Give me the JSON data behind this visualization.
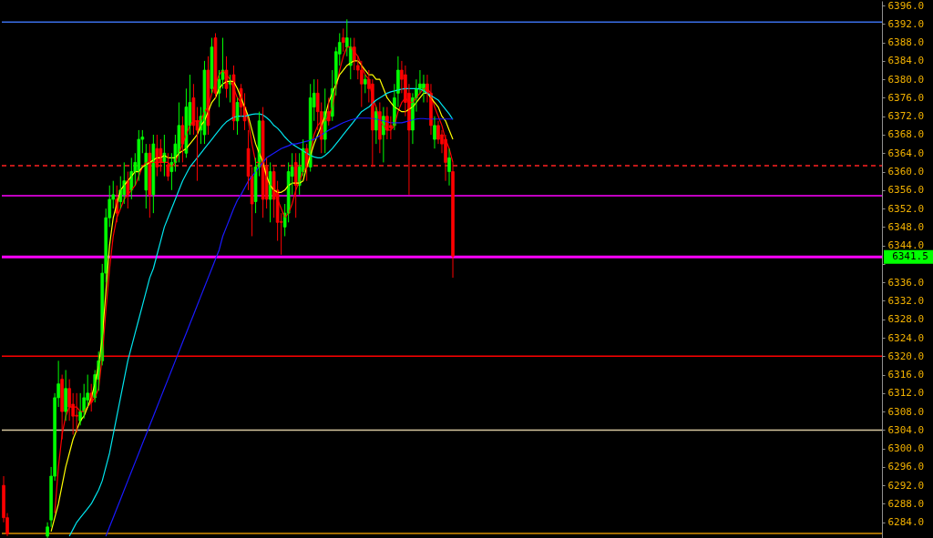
{
  "chart_data": {
    "type": "candlestick",
    "categories": [
      null,
      null,
      null,
      null,
      null,
      null,
      null,
      null,
      null,
      null,
      null,
      null,
      null,
      null,
      null,
      null,
      null,
      null,
      null,
      null,
      null,
      null,
      null,
      null,
      null,
      null,
      null,
      null,
      null,
      null,
      null,
      null,
      null,
      null,
      null,
      null,
      null,
      null,
      null,
      null,
      null,
      null,
      null,
      null,
      null,
      null,
      null,
      null,
      null,
      null,
      null,
      null,
      null,
      null,
      null,
      null,
      null,
      null,
      null,
      null,
      null,
      null,
      null,
      null,
      null,
      null,
      null,
      null,
      null,
      null,
      null,
      null,
      null,
      null,
      null,
      null,
      null,
      null,
      null,
      null,
      null,
      null,
      null,
      null,
      null,
      null,
      null,
      null,
      null,
      null,
      null,
      null,
      null,
      null,
      null,
      null,
      null,
      null,
      null,
      null,
      null,
      null,
      null,
      null,
      null,
      null,
      null,
      null,
      null,
      null,
      null,
      null,
      null,
      null,
      null,
      null,
      null,
      null,
      null,
      null,
      null,
      null,
      null,
      null,
      null,
      null,
      null,
      null,
      null,
      null,
      null,
      null,
      null,
      null,
      null,
      null,
      null,
      null,
      null,
      null,
      null,
      null,
      null,
      null,
      null,
      null,
      null,
      null,
      null,
      null,
      null,
      null,
      null,
      null,
      null,
      null,
      null,
      null,
      null,
      null,
      null,
      null,
      null,
      null,
      null,
      null,
      null,
      null,
      null,
      null,
      null,
      null,
      null,
      null,
      null,
      null,
      null,
      null,
      null,
      null,
      null,
      null,
      null,
      null,
      null,
      null,
      null,
      null,
      null,
      null,
      null,
      null,
      null,
      null,
      null,
      null,
      null,
      null,
      null,
      null,
      null,
      null,
      null,
      null,
      null,
      null,
      null,
      null,
      null,
      null,
      null,
      null,
      null,
      null,
      null,
      null,
      null,
      null,
      null,
      null,
      null,
      null,
      null,
      null,
      null,
      null,
      null,
      null,
      null,
      null,
      null,
      null,
      null,
      null,
      null,
      null,
      null,
      null,
      null,
      null,
      null
    ],
    "colors": [
      "#ff0000",
      "#ff0000",
      null,
      null,
      null,
      null,
      null,
      null,
      null,
      null,
      null,
      null,
      "#00ff00",
      "#00ff00",
      "#00ff00",
      "#00ff00",
      "#ff0000",
      "#00ff00",
      "#ff0000",
      "#ff0000",
      "#ff0000",
      "#00ff00",
      "#00ff00",
      "#00ff00",
      "#ff0000",
      "#00ff00",
      "#00ff00",
      "#00ff00",
      "#00ff00",
      "#00ff00",
      "#00ff00",
      "#ff0000",
      "#00ff00",
      "#00ff00",
      "#ff0000",
      "#00ff00",
      "#00ff00",
      "#00ff00",
      "#00ff00",
      "#00ff00",
      "#ff0000",
      "#00ff00",
      "#ff0000",
      "#ff0000",
      "#00ff00",
      "#ff0000",
      "#00ff00",
      "#00ff00",
      "#00ff00",
      "#ff0000",
      "#00ff00",
      "#00ff00",
      "#ff0000",
      "#ff0000",
      "#00ff00",
      "#00ff00",
      "#ff0000",
      "#00ff00",
      "#ff0000",
      "#00ff00",
      "#00ff00",
      "#ff0000",
      "#00ff00",
      "#ff0000",
      "#00ff00",
      "#ff0000",
      "#ff0000",
      "#ff0000",
      "#ff0000",
      "#00ff00",
      "#00ff00",
      "#ff0000",
      "#ff0000",
      "#00ff00",
      "#ff0000",
      "#ff0000",
      "#ff0000",
      "#00ff00",
      "#00ff00",
      "#00ff00",
      "#ff0000",
      "#00ff00",
      "#00ff00",
      "#ff0000",
      "#00ff00",
      "#00ff00",
      "#ff0000",
      "#ff0000",
      "#00ff00",
      "#ff0000",
      "#00ff00",
      "#00ff00",
      "#00ff00",
      "#ff0000",
      "#00ff00",
      "#00ff00",
      "#ff0000",
      "#ff0000",
      "#ff0000",
      "#00ff00",
      "#ff0000",
      "#ff0000",
      "#00ff00",
      "#ff0000",
      "#00ff00",
      "#ff0000",
      "#ff0000",
      "#00ff00",
      "#00ff00",
      "#ff0000",
      "#ff0000",
      "#ff0000",
      "#00ff00",
      "#00ff00",
      "#00ff00",
      "#00ff00",
      "#ff0000",
      "#ff0000",
      "#00ff00",
      "#ff0000",
      "#ff0000",
      "#ff0000",
      "#00ff00",
      "#ff0000",
      null,
      null,
      null,
      null,
      null,
      null,
      null,
      null,
      null,
      null,
      null,
      null,
      null,
      null,
      null,
      null,
      null,
      null,
      null,
      null,
      null,
      null,
      null,
      null,
      null,
      null,
      null,
      null,
      null,
      null,
      null,
      null,
      null,
      null,
      null,
      null,
      null,
      null,
      null,
      null,
      null,
      null,
      null,
      null,
      null,
      null,
      null,
      null,
      null,
      null,
      null,
      null,
      null,
      null,
      null,
      null,
      null,
      null,
      null,
      null,
      null,
      null,
      null,
      null,
      null,
      null,
      null,
      null,
      null,
      null,
      null,
      null,
      null,
      null,
      null,
      null,
      null,
      null,
      null,
      null,
      null,
      null,
      null,
      null,
      null,
      null,
      null,
      null,
      null,
      null,
      null,
      null,
      null,
      null,
      null,
      null,
      null,
      null,
      null,
      null,
      null,
      null,
      null,
      null,
      null,
      null,
      null,
      null,
      null,
      null,
      null,
      null,
      null,
      null,
      null,
      null,
      null
    ],
    "ohlc": [
      [
        6292,
        6294,
        6284,
        6285
      ],
      [
        6285,
        6286,
        6281,
        6281.5
      ],
      null,
      null,
      null,
      null,
      null,
      null,
      null,
      null,
      null,
      null,
      [
        6281,
        6284,
        6280.6,
        6283
      ],
      [
        6284.5,
        6296,
        6283,
        6294
      ],
      [
        6294,
        6312,
        6293,
        6311
      ],
      [
        6311,
        6319,
        6309,
        6314
      ],
      [
        6315,
        6316,
        6302,
        6308
      ],
      [
        6308,
        6317,
        6306,
        6313
      ],
      [
        6313,
        6315,
        6306,
        6309
      ],
      [
        6309.6,
        6312,
        6303,
        6307
      ],
      [
        6307.2,
        6312,
        6303.5,
        6307
      ],
      [
        6306,
        6312,
        6305,
        6308
      ],
      [
        6308,
        6314,
        6306.5,
        6311
      ],
      [
        6310.5,
        6316,
        6309,
        6312
      ],
      [
        6312,
        6314,
        6308,
        6310
      ],
      [
        6311,
        6317,
        6310,
        6316
      ],
      [
        6315,
        6321,
        6312.5,
        6319
      ],
      [
        6319,
        6340,
        6318,
        6338
      ],
      [
        6338,
        6352,
        6336,
        6350
      ],
      [
        6350,
        6357,
        6348,
        6354
      ],
      [
        6354,
        6358,
        6352,
        6355
      ],
      [
        6354,
        6357,
        6349,
        6351
      ],
      [
        6353.5,
        6359,
        6352,
        6356
      ],
      [
        6355,
        6362,
        6353,
        6358
      ],
      [
        6358,
        6360,
        6352,
        6355
      ],
      [
        6356,
        6363,
        6354,
        6360
      ],
      [
        6360,
        6364,
        6357,
        6362
      ],
      [
        6360,
        6369,
        6358,
        6367
      ],
      [
        6367,
        6369,
        6364,
        6367.5
      ],
      [
        6356,
        6366,
        6352,
        6364
      ],
      [
        6364,
        6366,
        6350,
        6355
      ],
      [
        6355,
        6368,
        6351,
        6366
      ],
      [
        6365,
        6368,
        6359,
        6361
      ],
      [
        6365,
        6367,
        6360,
        6362
      ],
      [
        6362,
        6368,
        6359,
        6364
      ],
      [
        6361.5,
        6364,
        6358,
        6359
      ],
      [
        6360,
        6364,
        6356,
        6362
      ],
      [
        6362,
        6368,
        6360,
        6366
      ],
      [
        6364,
        6375,
        6362,
        6370
      ],
      [
        6370,
        6372,
        6362,
        6366
      ],
      [
        6364,
        6378,
        6363,
        6374
      ],
      [
        6370,
        6381,
        6368,
        6375
      ],
      [
        6376,
        6379,
        6368,
        6370
      ],
      [
        6371,
        6374,
        6358,
        6369
      ],
      [
        6369,
        6374,
        6366,
        6372
      ],
      [
        6368,
        6384,
        6366,
        6382
      ],
      [
        6382,
        6385,
        6368,
        6370
      ],
      [
        6378,
        6389,
        6377,
        6387
      ],
      [
        6389,
        6390,
        6376,
        6377
      ],
      [
        6377,
        6382,
        6374,
        6380
      ],
      [
        6380,
        6389,
        6378,
        6382
      ],
      [
        6382,
        6385,
        6376,
        6378
      ],
      [
        6379,
        6381,
        6375,
        6379.5
      ],
      [
        6381,
        6383,
        6369,
        6371
      ],
      [
        6371,
        6376,
        6368,
        6375
      ],
      [
        6378,
        6379,
        6372,
        6374
      ],
      [
        6374,
        6377,
        6369,
        6371
      ],
      [
        6365,
        6369,
        6356,
        6359
      ],
      [
        6359,
        6361,
        6346,
        6353
      ],
      [
        6353.5,
        6363,
        6351,
        6361
      ],
      [
        6361,
        6373,
        6359,
        6371
      ],
      [
        6371,
        6374,
        6350,
        6354
      ],
      [
        6361,
        6363,
        6352,
        6354
      ],
      [
        6354,
        6362,
        6349,
        6360
      ],
      [
        6360,
        6361,
        6350,
        6354
      ],
      [
        6356,
        6358,
        6345,
        6349
      ],
      [
        6349.2,
        6351,
        6342,
        6349
      ],
      [
        6348,
        6353,
        6346,
        6351
      ],
      [
        6351,
        6362,
        6349,
        6360
      ],
      [
        6359,
        6364,
        6355,
        6361
      ],
      [
        6362,
        6364,
        6350,
        6357
      ],
      [
        6357,
        6364,
        6355,
        6361
      ],
      [
        6360,
        6367,
        6359,
        6365
      ],
      [
        6365,
        6366,
        6358,
        6361
      ],
      [
        6361,
        6379,
        6360,
        6376
      ],
      [
        6374,
        6380,
        6371,
        6377
      ],
      [
        6377,
        6380,
        6369,
        6373
      ],
      [
        6373,
        6375,
        6364,
        6367
      ],
      [
        6367,
        6378,
        6364,
        6373
      ],
      [
        6373,
        6376,
        6370,
        6371
      ],
      [
        6372,
        6382,
        6371,
        6378
      ],
      [
        6379,
        6387,
        6376.5,
        6386
      ],
      [
        6385.5,
        6390,
        6383,
        6388
      ],
      [
        6389,
        6391,
        6386,
        6388
      ],
      [
        6387,
        6393,
        6385,
        6389
      ],
      [
        6383,
        6389,
        6380,
        6387
      ],
      [
        6387,
        6389,
        6382,
        6384
      ],
      [
        6383,
        6385,
        6380,
        6382
      ],
      [
        6382,
        6384,
        6374,
        6379
      ],
      [
        6379,
        6381,
        6377,
        6380
      ],
      [
        6380,
        6382,
        6375,
        6378
      ],
      [
        6379,
        6380,
        6361,
        6369
      ],
      [
        6369,
        6374,
        6366,
        6373
      ],
      [
        6373,
        6375,
        6364,
        6367
      ],
      [
        6368,
        6374,
        6362,
        6372
      ],
      [
        6372,
        6374,
        6367,
        6369
      ],
      [
        6370,
        6372,
        6367,
        6369.5
      ],
      [
        6370,
        6379,
        6369,
        6376
      ],
      [
        6377,
        6385,
        6374,
        6382
      ],
      [
        6382,
        6384,
        6377,
        6380
      ],
      [
        6381,
        6383,
        6372,
        6375
      ],
      [
        6377,
        6379,
        6355,
        6369
      ],
      [
        6369,
        6377,
        6366,
        6376
      ],
      [
        6376,
        6380,
        6373,
        6378
      ],
      [
        6378,
        6382,
        6377,
        6379
      ],
      [
        6377.5,
        6381,
        6375,
        6379
      ],
      [
        6379,
        6381,
        6375,
        6377
      ],
      [
        6377,
        6379,
        6368,
        6370
      ],
      [
        6367,
        6372,
        6365,
        6370
      ],
      [
        6370,
        6371,
        6366,
        6367
      ],
      [
        6368,
        6369,
        6364,
        6366
      ],
      [
        6367,
        6368,
        6358,
        6362
      ],
      [
        6360,
        6365,
        6357,
        6363
      ],
      [
        6360,
        6362,
        6337,
        6341.7
      ],
      null,
      null,
      null,
      null,
      null,
      null,
      null,
      null,
      null,
      null,
      null,
      null,
      null,
      null,
      null,
      null,
      null,
      null,
      null,
      null,
      null,
      null,
      null,
      null,
      null,
      null,
      null,
      null,
      null,
      null,
      null,
      null,
      null,
      null,
      null,
      null,
      null,
      null,
      null,
      null,
      null,
      null,
      null,
      null,
      null,
      null,
      null,
      null,
      null,
      null,
      null,
      null,
      null,
      null,
      null,
      null,
      null,
      null,
      null,
      null,
      null,
      null,
      null,
      null,
      null,
      null,
      null,
      null,
      null,
      null,
      null,
      null,
      null,
      null,
      null,
      null,
      null,
      null,
      null,
      null,
      null,
      null,
      null,
      null,
      null,
      null,
      null,
      null,
      null,
      null,
      null,
      null,
      null,
      null,
      null,
      null,
      null,
      null,
      null,
      null,
      null,
      null,
      null,
      null,
      null,
      null,
      null,
      null,
      null,
      null,
      null,
      null,
      null,
      null,
      null,
      null,
      null
    ],
    "series": [
      {
        "type": "line",
        "color": "#ff0000",
        "values": [
          null,
          null,
          null,
          null,
          null,
          null,
          null,
          null,
          null,
          null,
          null,
          null,
          null,
          null,
          6286,
          6296,
          6303,
          6307,
          6309,
          6309,
          6309,
          6308,
          6308,
          6309,
          6310,
          6311,
          6313,
          6320,
          6330,
          6339,
          6346,
          6350,
          6352,
          6354,
          6355,
          6356,
          6357,
          6359,
          6361,
          6362,
          6362,
          6362,
          6362,
          6362,
          6362,
          6362,
          6361,
          6362,
          6364,
          6366,
          6368,
          6370,
          6371,
          6371,
          6371,
          6373,
          6374,
          6377,
          6379,
          6381,
          6382,
          6381,
          6380,
          6378,
          6376,
          6375,
          6374,
          6371,
          6366,
          6362,
          6362,
          6361,
          6359,
          6357,
          6356,
          6354,
          6352,
          6350,
          6351,
          6353,
          6356,
          6358,
          6360,
          6361,
          6364,
          6368,
          6370,
          6371,
          6371,
          6372,
          6374,
          6378,
          6382,
          6385,
          6387,
          6387,
          6386,
          6385,
          6383,
          6381,
          6380,
          6376,
          6374,
          6371,
          6370,
          6369,
          6369,
          6370,
          6373,
          6375,
          6376,
          6375,
          6375,
          6376,
          6377,
          6378,
          6378,
          6377,
          6374,
          6372,
          6370,
          6367,
          6365,
          6362,
          null,
          null,
          null,
          null,
          null,
          null,
          null,
          null,
          null,
          null,
          null,
          null,
          null,
          null,
          null,
          null,
          null,
          null,
          null,
          null,
          null,
          null,
          null,
          null,
          null,
          null,
          null,
          null,
          null,
          null,
          null,
          null,
          null,
          null,
          null,
          null,
          null,
          null,
          null,
          null,
          null,
          null,
          null,
          null,
          null,
          null,
          null,
          null,
          null,
          null,
          null,
          null,
          null,
          null,
          null,
          null,
          null,
          null,
          null,
          null,
          null,
          null,
          null,
          null,
          null,
          null,
          null,
          null,
          null,
          null,
          null,
          null,
          null,
          null,
          null,
          null,
          null,
          null,
          null,
          null,
          null,
          null,
          null,
          null,
          null,
          null,
          null,
          null,
          null,
          null,
          null,
          null,
          null,
          null,
          null,
          null,
          null,
          null,
          null,
          null,
          null,
          null,
          null,
          null,
          null,
          null,
          null,
          null,
          null,
          null,
          null,
          null,
          null,
          null,
          null,
          null,
          null
        ]
      },
      {
        "type": "line",
        "color": "#ffff00",
        "values": [
          null,
          null,
          null,
          null,
          null,
          null,
          null,
          null,
          null,
          null,
          null,
          null,
          null,
          6282,
          6285,
          6288,
          6292,
          6296,
          6299,
          6302,
          6304,
          6306,
          6307,
          6309,
          6311,
          6314,
          6318,
          6324,
          6334,
          6344,
          6350,
          6353,
          6356,
          6357,
          6358,
          6359,
          6360,
          6360,
          6361,
          6361.5,
          6362,
          6362.5,
          6363,
          6363,
          6363.5,
          6363,
          6363,
          6363,
          6364,
          6364.5,
          6365,
          6366,
          6367,
          6368,
          6370,
          6371,
          6373,
          6375,
          6376,
          6378,
          6379,
          6379.5,
          6379.6,
          6379.5,
          6378,
          6376,
          6374,
          6372,
          6369,
          6366,
          6364,
          6362,
          6359,
          6357,
          6356,
          6355.5,
          6355.5,
          6356,
          6357,
          6357.5,
          6357.5,
          6357.5,
          6358,
          6361,
          6363.5,
          6366,
          6368,
          6370,
          6372,
          6375,
          6377,
          6379,
          6381,
          6382,
          6383,
          6383.6,
          6384,
          6384,
          6383,
          6382,
          6381,
          6381,
          6380,
          6380,
          6378,
          6376,
          6375,
          6374,
          6373.5,
          6373,
          6373,
          6373.5,
          6374,
          6375,
          6376,
          6377,
          6377,
          6376,
          6375,
          6374,
          6372,
          6371,
          6369,
          6367,
          null,
          null,
          null,
          null,
          null,
          null,
          null,
          null,
          null,
          null,
          null,
          null,
          null,
          null,
          null,
          null,
          null,
          null,
          null,
          null,
          null,
          null,
          null,
          null,
          null,
          null,
          null,
          null,
          null,
          null,
          null,
          null,
          null,
          null,
          null,
          null,
          null,
          null,
          null,
          null,
          null,
          null,
          null,
          null,
          null,
          null,
          null,
          null,
          null,
          null,
          null,
          null,
          null,
          null,
          null,
          null,
          null,
          null,
          null,
          null,
          null,
          null,
          null,
          null,
          null,
          null,
          null,
          null,
          null,
          null,
          null,
          null,
          null,
          null,
          null,
          null,
          null,
          null,
          null,
          null,
          null,
          null,
          null,
          null,
          null,
          null,
          null,
          null,
          null,
          null,
          null,
          null,
          null,
          null,
          null,
          null,
          null,
          null,
          null,
          null,
          null,
          null,
          null,
          null,
          null,
          null,
          null,
          null,
          null,
          null,
          null,
          null,
          null,
          null,
          null,
          null,
          null
        ]
      },
      {
        "type": "line",
        "color": "#00e5ee",
        "values": [
          null,
          null,
          null,
          null,
          null,
          null,
          null,
          null,
          null,
          null,
          null,
          null,
          null,
          null,
          null,
          null,
          null,
          null,
          6281,
          6282.5,
          6284,
          6285,
          6286,
          6287,
          6288,
          6289.5,
          6291,
          6293,
          6296,
          6299,
          6303,
          6307,
          6311,
          6315,
          6319,
          6322,
          6325,
          6328,
          6331,
          6334,
          6337,
          6339,
          6342,
          6345,
          6348,
          6350,
          6352,
          6354,
          6356,
          6358,
          6359.5,
          6361,
          6362,
          6363,
          6364,
          6365,
          6366,
          6367,
          6368,
          6369,
          6370,
          6370.8,
          6371.3,
          6371.8,
          6372,
          6372,
          6372,
          6372.2,
          6372.4,
          6372.5,
          6372.5,
          6372.3,
          6371.7,
          6371,
          6370,
          6369.4,
          6368.5,
          6367.5,
          6366.7,
          6366,
          6365.5,
          6365,
          6364.5,
          6364,
          6363.5,
          6363.2,
          6363,
          6363,
          6363.5,
          6364.2,
          6365,
          6366,
          6367,
          6368,
          6369,
          6370,
          6371,
          6372,
          6373,
          6373.5,
          6374,
          6374.8,
          6375.5,
          6376,
          6376.5,
          6377,
          6377.3,
          6377.5,
          6377.7,
          6377.9,
          6378,
          6378,
          6378,
          6378,
          6377.9,
          6377.5,
          6377,
          6376.5,
          6376,
          6375.5,
          6374.5,
          6373.5,
          6372.5,
          6371.3,
          null,
          null,
          null,
          null,
          null,
          null,
          null,
          null,
          null,
          null,
          null,
          null,
          null,
          null,
          null,
          null,
          null,
          null,
          null,
          null,
          null,
          null,
          null,
          null,
          null,
          null,
          null,
          null,
          null,
          null,
          null,
          null,
          null,
          null,
          null,
          null,
          null,
          null,
          null,
          null,
          null,
          null,
          null,
          null,
          null,
          null,
          null,
          null,
          null,
          null,
          null,
          null,
          null,
          null,
          null,
          null,
          null,
          null,
          null,
          null,
          null,
          null,
          null,
          null,
          null,
          null,
          null,
          null,
          null,
          null,
          null,
          null,
          null,
          null,
          null,
          null,
          null,
          null,
          null,
          null,
          null,
          null,
          null,
          null,
          null,
          null,
          null,
          null,
          null,
          null,
          null,
          null,
          null,
          null,
          null,
          null,
          null,
          null,
          null,
          null,
          null,
          null,
          null,
          null,
          null,
          null,
          null,
          null,
          null,
          null,
          null,
          null,
          null,
          null,
          null,
          null,
          null
        ]
      },
      {
        "type": "line",
        "color": "#1a1aff",
        "values": [
          null,
          null,
          null,
          null,
          null,
          null,
          null,
          null,
          null,
          null,
          null,
          null,
          null,
          null,
          null,
          null,
          null,
          null,
          null,
          null,
          null,
          null,
          null,
          null,
          null,
          null,
          null,
          null,
          6281,
          6283,
          6285,
          6287,
          6289,
          6291,
          6293,
          6295,
          6297,
          6299,
          6301,
          6303,
          6305,
          6307,
          6309,
          6311,
          6313,
          6315,
          6317,
          6319,
          6321,
          6323,
          6325,
          6327,
          6329,
          6331,
          6333,
          6335,
          6337,
          6339,
          6341,
          6343,
          6346,
          6348,
          6350,
          6352,
          6353.8,
          6355,
          6356.5,
          6358,
          6359,
          6360,
          6361,
          6362,
          6363,
          6363.5,
          6364,
          6364.5,
          6365,
          6365.3,
          6365.6,
          6366,
          6366,
          6366.2,
          6366.4,
          6366.6,
          6366.8,
          6367,
          6367.5,
          6368,
          6368.5,
          6369,
          6369.4,
          6369.8,
          6370.2,
          6370.6,
          6370.9,
          6371.2,
          6371.4,
          6371.6,
          6371.6,
          6371.6,
          6371.6,
          6371.5,
          6371.4,
          6371.2,
          6371,
          6370.8,
          6370.6,
          6370.6,
          6370.6,
          6370.6,
          6370.8,
          6371,
          6371.2,
          6371.4,
          6371.5,
          6371.5,
          6371.4,
          6371.4,
          6371.4,
          6371.4,
          6371.4,
          6371.4,
          6371.4,
          6371.4,
          null,
          null,
          null,
          null,
          null,
          null,
          null,
          null,
          null,
          null,
          null,
          null,
          null,
          null,
          null,
          null,
          null,
          null,
          null,
          null,
          null,
          null,
          null,
          null,
          null,
          null,
          null,
          null,
          null,
          null,
          null,
          null,
          null,
          null,
          null,
          null,
          null,
          null,
          null,
          null,
          null,
          null,
          null,
          null,
          null,
          null,
          null,
          null,
          null,
          null,
          null,
          null,
          null,
          null,
          null,
          null,
          null,
          null,
          null,
          null,
          null,
          null,
          null,
          null,
          null,
          null,
          null,
          null,
          null,
          null,
          null,
          null,
          null,
          null,
          null,
          null,
          null,
          null,
          null,
          null,
          null,
          null,
          null,
          null,
          null,
          null,
          null,
          null,
          null,
          null,
          null,
          null,
          null,
          null,
          null,
          null,
          null,
          null,
          null,
          null,
          null,
          null,
          null,
          null,
          null,
          null,
          null,
          null,
          null,
          null,
          null,
          null,
          null,
          null,
          null,
          null,
          null
        ]
      }
    ],
    "ref_lines": [
      {
        "axis": "y",
        "value": 6392.4,
        "color": "#3a6fe8"
      },
      {
        "axis": "y",
        "value": 6361.3,
        "color": "#ff2020",
        "line_style": "dashed"
      },
      {
        "axis": "y",
        "value": 6354.8,
        "color": "#ff00ff"
      },
      {
        "axis": "y",
        "value": 6341.5,
        "color": "#ff00ff",
        "label": "6341.5"
      },
      {
        "axis": "y",
        "value": 6320,
        "color": "#ff0000"
      },
      {
        "axis": "y",
        "value": 6304,
        "color": "#d8c8a0"
      },
      {
        "axis": "y",
        "value": 6281.6,
        "color": "#d89000"
      }
    ],
    "ylim": [
      6280.4,
      6397
    ],
    "yticks": [
      {
        "value": 6284,
        "label": "6284.0"
      },
      {
        "value": 6288,
        "label": "6288.0"
      },
      {
        "value": 6292,
        "label": "6292.0"
      },
      {
        "value": 6296,
        "label": "6296.0"
      },
      {
        "value": 6300,
        "label": "6300.0"
      },
      {
        "value": 6304,
        "label": "6304.0"
      },
      {
        "value": 6308,
        "label": "6308.0"
      },
      {
        "value": 6312,
        "label": "6312.0"
      },
      {
        "value": 6316,
        "label": "6316.0"
      },
      {
        "value": 6320,
        "label": "6320.0"
      },
      {
        "value": 6324,
        "label": "6324.0"
      },
      {
        "value": 6328,
        "label": "6328.0"
      },
      {
        "value": 6332,
        "label": "6332.0"
      },
      {
        "value": 6336,
        "label": "6336.0"
      },
      {
        "value": 6340,
        "label": null
      },
      {
        "value": 6344,
        "label": "6344.0"
      },
      {
        "value": 6348,
        "label": "6348.0"
      },
      {
        "value": 6352,
        "label": "6352.0"
      },
      {
        "value": 6356,
        "label": "6356.0"
      },
      {
        "value": 6360,
        "label": "6360.0"
      },
      {
        "value": 6364,
        "label": "6364.0"
      },
      {
        "value": 6368,
        "label": "6368.0"
      },
      {
        "value": 6372,
        "label": "6372.0"
      },
      {
        "value": 6376,
        "label": "6376.0"
      },
      {
        "value": 6380,
        "label": "6380.0"
      },
      {
        "value": 6384,
        "label": "6384.0"
      },
      {
        "value": 6388,
        "label": "6388.0"
      },
      {
        "value": 6392,
        "label": "6392.0"
      },
      {
        "value": 6396,
        "label": "6396.0"
      }
    ],
    "tick_labels": "y",
    "grid": false
  }
}
